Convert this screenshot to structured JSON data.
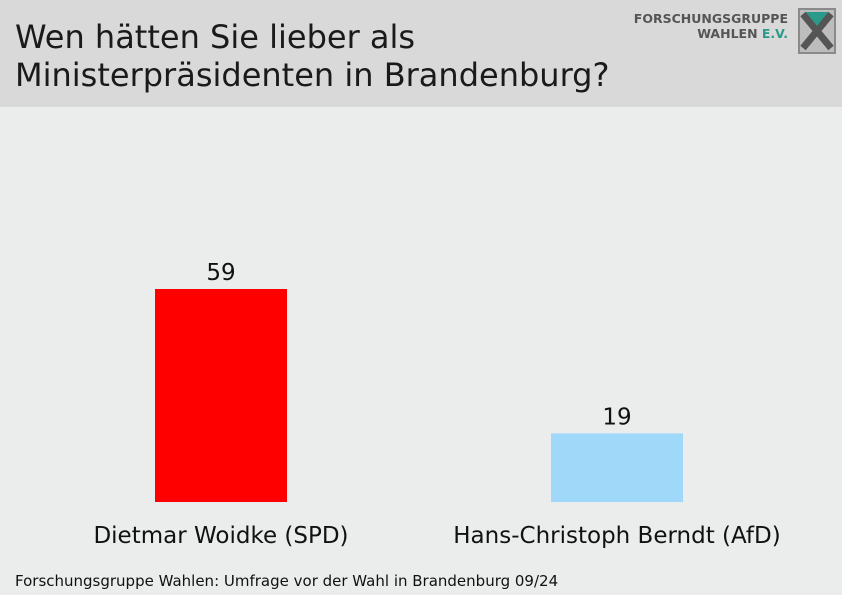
{
  "header": {
    "title_line1": "Wen hätten Sie lieber als",
    "title_line2": "Ministerpräsidenten in Brandenburg?",
    "logo": {
      "line1": "FORSCHUNGSGRUPPE",
      "line2_main": "WAHLEN",
      "line2_suffix": "E.V.",
      "icon": "fgw-x-logo-icon"
    }
  },
  "chart_data": {
    "type": "bar",
    "categories": [
      "Dietmar Woidke (SPD)",
      "Hans-Christoph Berndt (AfD)"
    ],
    "values": [
      59,
      19
    ],
    "colors": [
      "#ff0000",
      "#a0d8fa"
    ],
    "ylim": [
      0,
      75
    ],
    "grid": false,
    "legend": "none",
    "data_labels": true
  },
  "footer": {
    "source": "Forschungsgruppe Wahlen: Umfrage vor der Wahl in Brandenburg 09/24"
  },
  "colors": {
    "header_bg": "#d9d9d9",
    "chart_bg": "#ebedec",
    "logo_accent": "#2a9a8a"
  }
}
